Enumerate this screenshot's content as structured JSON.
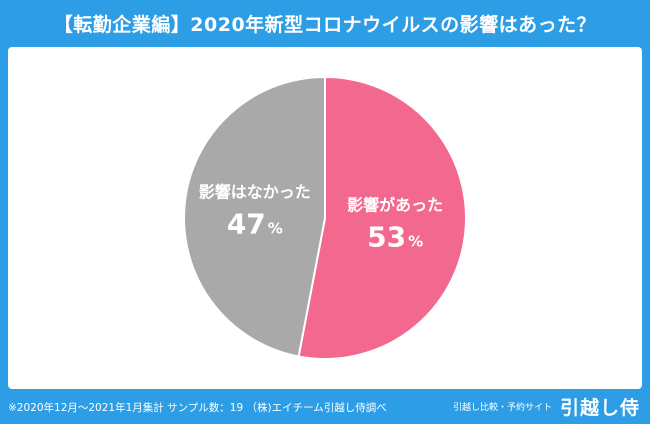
{
  "title": "【転勤企業編】2020年新型コロナウイルスの影響はあった？",
  "chart_data": {
    "type": "pie",
    "slices": [
      {
        "label": "影響があった",
        "value": 53,
        "unit": "%",
        "color": "#f3688f"
      },
      {
        "label": "影響はなかった",
        "value": 47,
        "unit": "%",
        "color": "#a9a9a9"
      }
    ]
  },
  "footer": {
    "note": "※2020年12月～2021年1月集計 サンプル数：19 （株)エイチーム引越し侍調べ",
    "brand_tag": "引越し比較・予約サイト",
    "brand_name": "引越し侍"
  },
  "colors": {
    "background": "#2d9ee6",
    "panel": "#ffffff"
  }
}
